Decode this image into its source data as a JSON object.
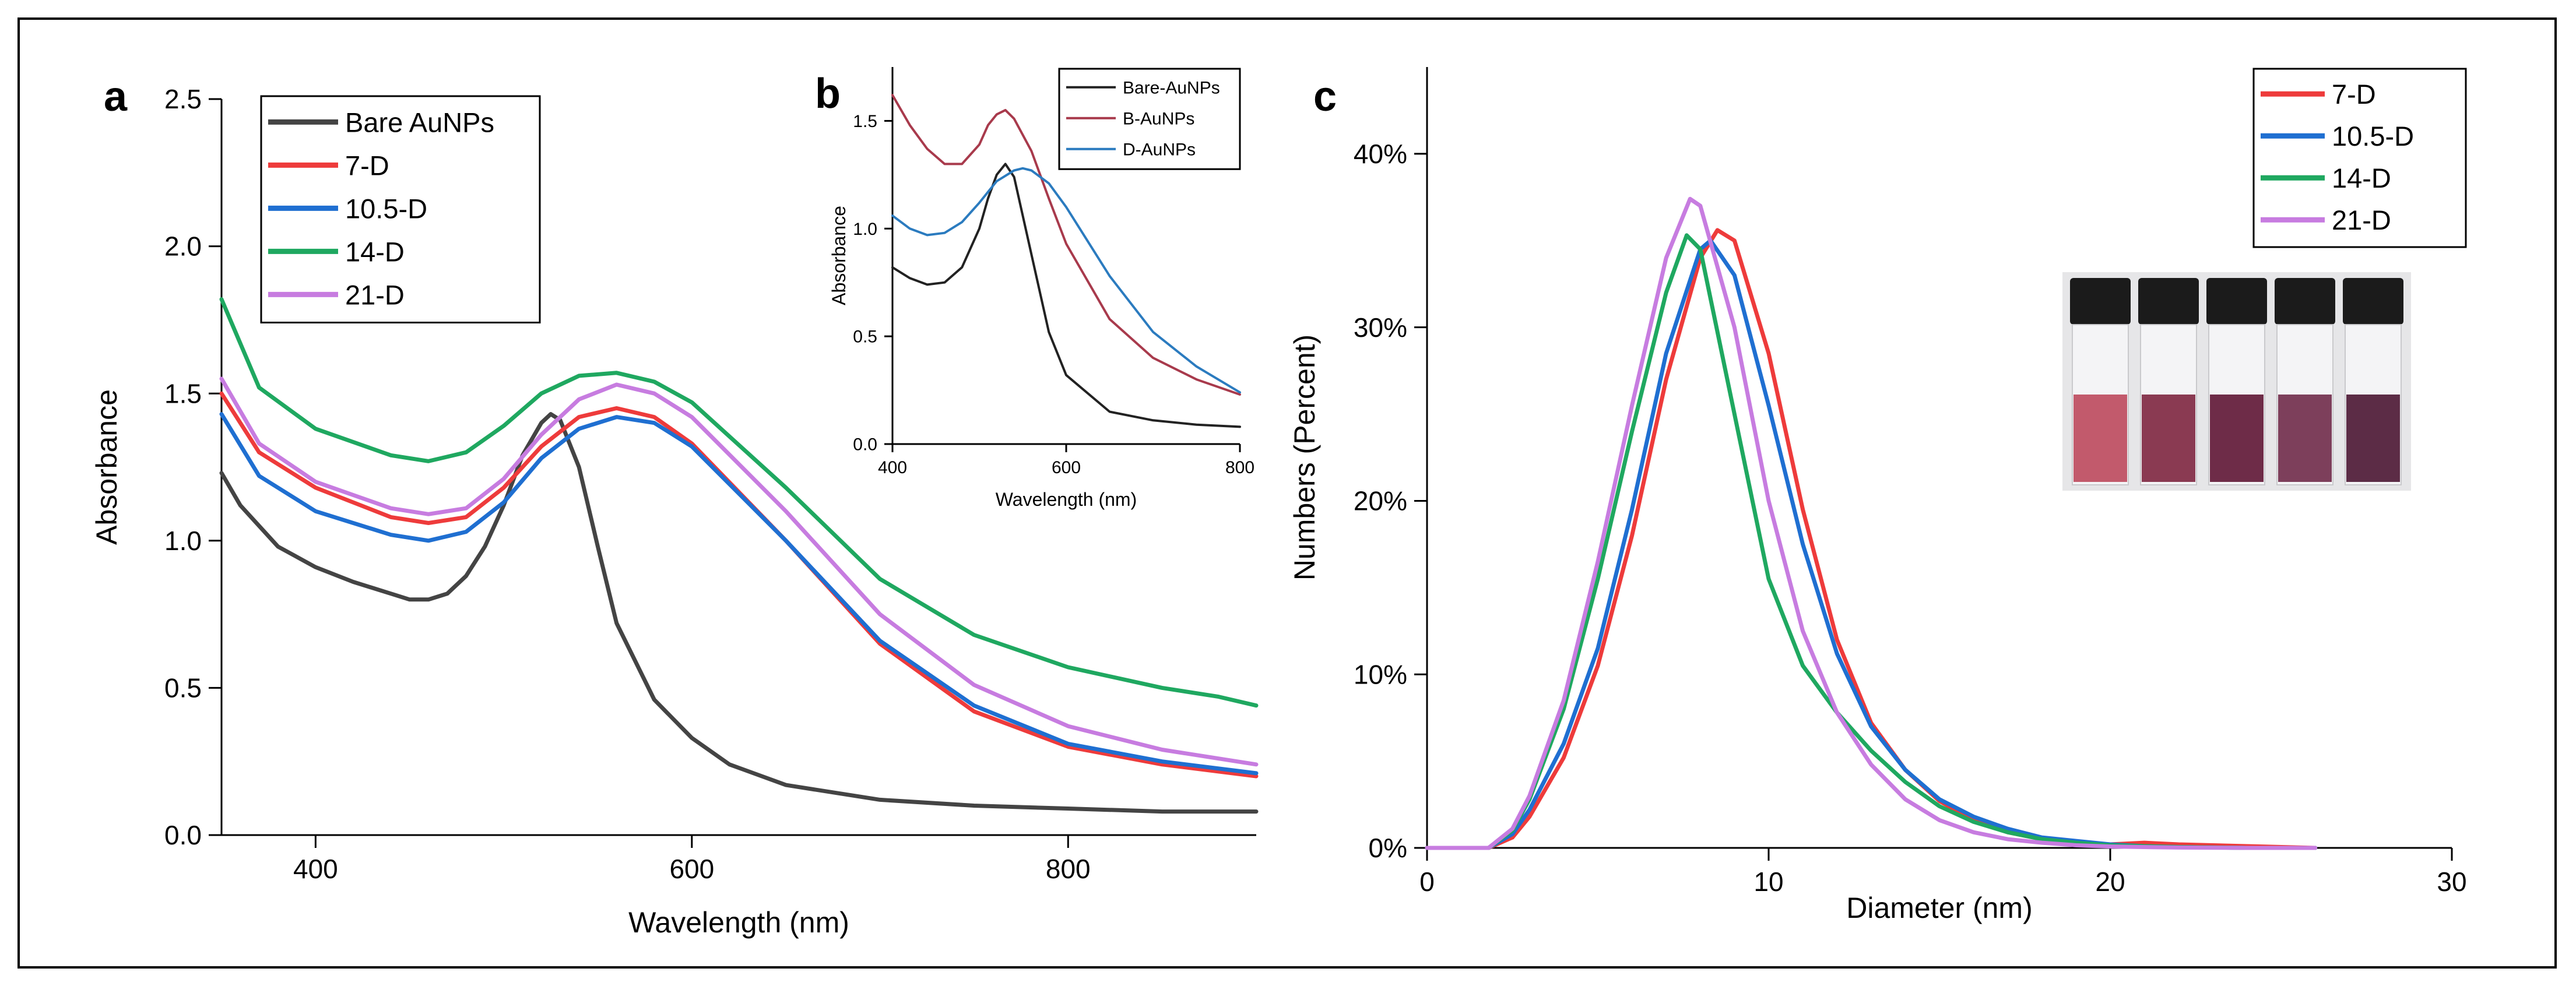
{
  "figure": {
    "panel_labels": [
      "a",
      "b",
      "c"
    ],
    "photo_vials": 5,
    "vial_colors": [
      "#c25a6c",
      "#8a3a52",
      "#6e2c48",
      "#7d3f5b",
      "#5c2c46"
    ]
  },
  "chart_data": [
    {
      "panel": "a",
      "type": "line",
      "title": "",
      "xlabel": "Wavelength (nm)",
      "ylabel": "Absorbance",
      "xlim": [
        350,
        900
      ],
      "ylim": [
        0,
        2.5
      ],
      "xticks": [
        400,
        600,
        800
      ],
      "yticks": [
        0.0,
        0.5,
        1.0,
        1.5,
        2.0,
        2.5
      ],
      "ytick_labels": [
        "0.0",
        "0.5",
        "1.0",
        "1.5",
        "2.0",
        "2.5"
      ],
      "legend_position": "top-left",
      "series": [
        {
          "name": "Bare AuNPs",
          "color": "#444444",
          "x": [
            350,
            360,
            380,
            400,
            420,
            440,
            450,
            460,
            470,
            480,
            490,
            500,
            510,
            520,
            525,
            530,
            540,
            550,
            560,
            580,
            600,
            620,
            650,
            700,
            750,
            800,
            850,
            900
          ],
          "y": [
            1.23,
            1.12,
            0.98,
            0.91,
            0.86,
            0.82,
            0.8,
            0.8,
            0.82,
            0.88,
            0.98,
            1.12,
            1.29,
            1.4,
            1.43,
            1.41,
            1.25,
            0.98,
            0.72,
            0.46,
            0.33,
            0.24,
            0.17,
            0.12,
            0.1,
            0.09,
            0.08,
            0.08
          ]
        },
        {
          "name": "7-D",
          "color": "#ee3b3b",
          "x": [
            350,
            370,
            400,
            440,
            460,
            480,
            500,
            520,
            540,
            560,
            580,
            600,
            650,
            700,
            750,
            800,
            850,
            900
          ],
          "y": [
            1.5,
            1.3,
            1.18,
            1.08,
            1.06,
            1.08,
            1.18,
            1.32,
            1.42,
            1.45,
            1.42,
            1.33,
            1.0,
            0.65,
            0.42,
            0.3,
            0.24,
            0.2
          ]
        },
        {
          "name": "10.5-D",
          "color": "#1f6fd1",
          "x": [
            350,
            370,
            400,
            440,
            460,
            480,
            500,
            520,
            540,
            560,
            580,
            600,
            650,
            700,
            750,
            800,
            850,
            900
          ],
          "y": [
            1.43,
            1.22,
            1.1,
            1.02,
            1.0,
            1.03,
            1.13,
            1.28,
            1.38,
            1.42,
            1.4,
            1.32,
            1.0,
            0.66,
            0.44,
            0.31,
            0.25,
            0.21
          ]
        },
        {
          "name": "14-D",
          "color": "#1fa860",
          "x": [
            350,
            370,
            400,
            440,
            460,
            480,
            500,
            520,
            540,
            560,
            580,
            600,
            650,
            700,
            750,
            800,
            850,
            880,
            900
          ],
          "y": [
            1.82,
            1.52,
            1.38,
            1.29,
            1.27,
            1.3,
            1.39,
            1.5,
            1.56,
            1.57,
            1.54,
            1.47,
            1.18,
            0.87,
            0.68,
            0.57,
            0.5,
            0.47,
            0.44
          ]
        },
        {
          "name": "21-D",
          "color": "#c77ce0",
          "x": [
            350,
            370,
            400,
            440,
            460,
            480,
            500,
            520,
            540,
            560,
            580,
            600,
            650,
            700,
            750,
            800,
            850,
            900
          ],
          "y": [
            1.55,
            1.33,
            1.2,
            1.11,
            1.09,
            1.11,
            1.21,
            1.36,
            1.48,
            1.53,
            1.5,
            1.42,
            1.1,
            0.75,
            0.51,
            0.37,
            0.29,
            0.24
          ]
        }
      ]
    },
    {
      "panel": "b",
      "type": "line",
      "title": "",
      "xlabel": "Wavelength (nm)",
      "ylabel": "Absorbance",
      "xlim": [
        400,
        800
      ],
      "ylim": [
        0,
        1.75
      ],
      "xticks": [
        400,
        600,
        800
      ],
      "yticks": [
        0.0,
        0.5,
        1.0,
        1.5
      ],
      "ytick_labels": [
        "0.0",
        "0.5",
        "1.0",
        "1.5"
      ],
      "legend_position": "top-right",
      "series": [
        {
          "name": "Bare-AuNPs",
          "color": "#222222",
          "x": [
            400,
            420,
            440,
            460,
            480,
            500,
            510,
            520,
            530,
            540,
            560,
            580,
            600,
            650,
            700,
            750,
            800
          ],
          "y": [
            0.82,
            0.77,
            0.74,
            0.75,
            0.82,
            1.0,
            1.14,
            1.25,
            1.3,
            1.24,
            0.88,
            0.52,
            0.32,
            0.15,
            0.11,
            0.09,
            0.08
          ]
        },
        {
          "name": "B-AuNPs",
          "color": "#a83a4c",
          "x": [
            400,
            420,
            440,
            460,
            480,
            500,
            510,
            520,
            530,
            540,
            560,
            580,
            600,
            650,
            700,
            750,
            800
          ],
          "y": [
            1.62,
            1.48,
            1.37,
            1.3,
            1.3,
            1.39,
            1.48,
            1.53,
            1.55,
            1.51,
            1.36,
            1.14,
            0.93,
            0.58,
            0.4,
            0.3,
            0.23
          ]
        },
        {
          "name": "D-AuNPs",
          "color": "#2b7bbf",
          "x": [
            400,
            420,
            440,
            460,
            480,
            500,
            520,
            540,
            550,
            560,
            580,
            600,
            650,
            700,
            750,
            800
          ],
          "y": [
            1.06,
            1.0,
            0.97,
            0.98,
            1.03,
            1.12,
            1.22,
            1.27,
            1.28,
            1.27,
            1.21,
            1.1,
            0.78,
            0.52,
            0.36,
            0.24
          ]
        }
      ]
    },
    {
      "panel": "c",
      "type": "line",
      "title": "",
      "xlabel": "Diameter (nm)",
      "ylabel": "Numbers (Percent)",
      "xlim": [
        0,
        30
      ],
      "ylim": [
        0,
        45
      ],
      "xticks": [
        0,
        10,
        20,
        30
      ],
      "yticks": [
        0,
        10,
        20,
        30,
        40
      ],
      "ytick_labels": [
        "0%",
        "10%",
        "20%",
        "30%",
        "40%"
      ],
      "legend_position": "top-right",
      "series": [
        {
          "name": "7-D",
          "color": "#ee3b3b",
          "x": [
            0,
            1.8,
            2.5,
            3,
            4,
            5,
            6,
            7,
            8,
            8.5,
            9,
            10,
            11,
            12,
            13,
            14,
            15,
            16,
            17,
            18,
            19,
            20,
            21,
            22,
            24,
            26
          ],
          "y": [
            0,
            0,
            0.6,
            1.8,
            5.2,
            10.5,
            18,
            27,
            34,
            35.6,
            35,
            28.5,
            19.5,
            12,
            7.2,
            4.5,
            2.7,
            1.6,
            0.9,
            0.5,
            0.3,
            0.2,
            0.3,
            0.2,
            0.1,
            0
          ]
        },
        {
          "name": "10.5-D",
          "color": "#1f6fd1",
          "x": [
            0,
            1.8,
            2.5,
            3,
            4,
            5,
            6,
            7,
            8,
            8.3,
            9,
            10,
            11,
            12,
            13,
            14,
            15,
            16,
            17,
            18,
            19,
            20,
            21,
            22,
            24,
            26
          ],
          "y": [
            0,
            0,
            0.8,
            2.2,
            6,
            11.5,
            19.5,
            28.5,
            34.5,
            35,
            33,
            25.5,
            17.5,
            11.2,
            7,
            4.5,
            2.8,
            1.8,
            1.1,
            0.6,
            0.4,
            0.2,
            0.1,
            0.05,
            0,
            0
          ]
        },
        {
          "name": "14-D",
          "color": "#1fa860",
          "x": [
            0,
            1.8,
            2.5,
            3,
            4,
            5,
            6,
            7,
            7.6,
            8,
            9,
            10,
            11,
            12,
            13,
            14,
            15,
            16,
            17,
            18,
            19,
            20,
            21,
            22,
            24,
            26
          ],
          "y": [
            0,
            0,
            1,
            2.8,
            8,
            15.5,
            24,
            32,
            35.3,
            34.5,
            25,
            15.5,
            10.5,
            7.8,
            5.6,
            3.8,
            2.4,
            1.5,
            0.9,
            0.5,
            0.3,
            0.15,
            0.1,
            0.05,
            0,
            0
          ]
        },
        {
          "name": "21-D",
          "color": "#c77ce0",
          "x": [
            0,
            1.8,
            2.5,
            3,
            4,
            5,
            6,
            7,
            7.7,
            8,
            9,
            10,
            11,
            12,
            13,
            14,
            15,
            16,
            17,
            18,
            19,
            20,
            22,
            24,
            26
          ],
          "y": [
            0,
            0,
            1.1,
            3,
            8.5,
            16.5,
            25.5,
            34,
            37.4,
            37,
            30,
            20,
            12.5,
            7.8,
            4.8,
            2.8,
            1.6,
            0.9,
            0.5,
            0.3,
            0.15,
            0.08,
            0.02,
            0,
            0
          ]
        }
      ]
    }
  ]
}
